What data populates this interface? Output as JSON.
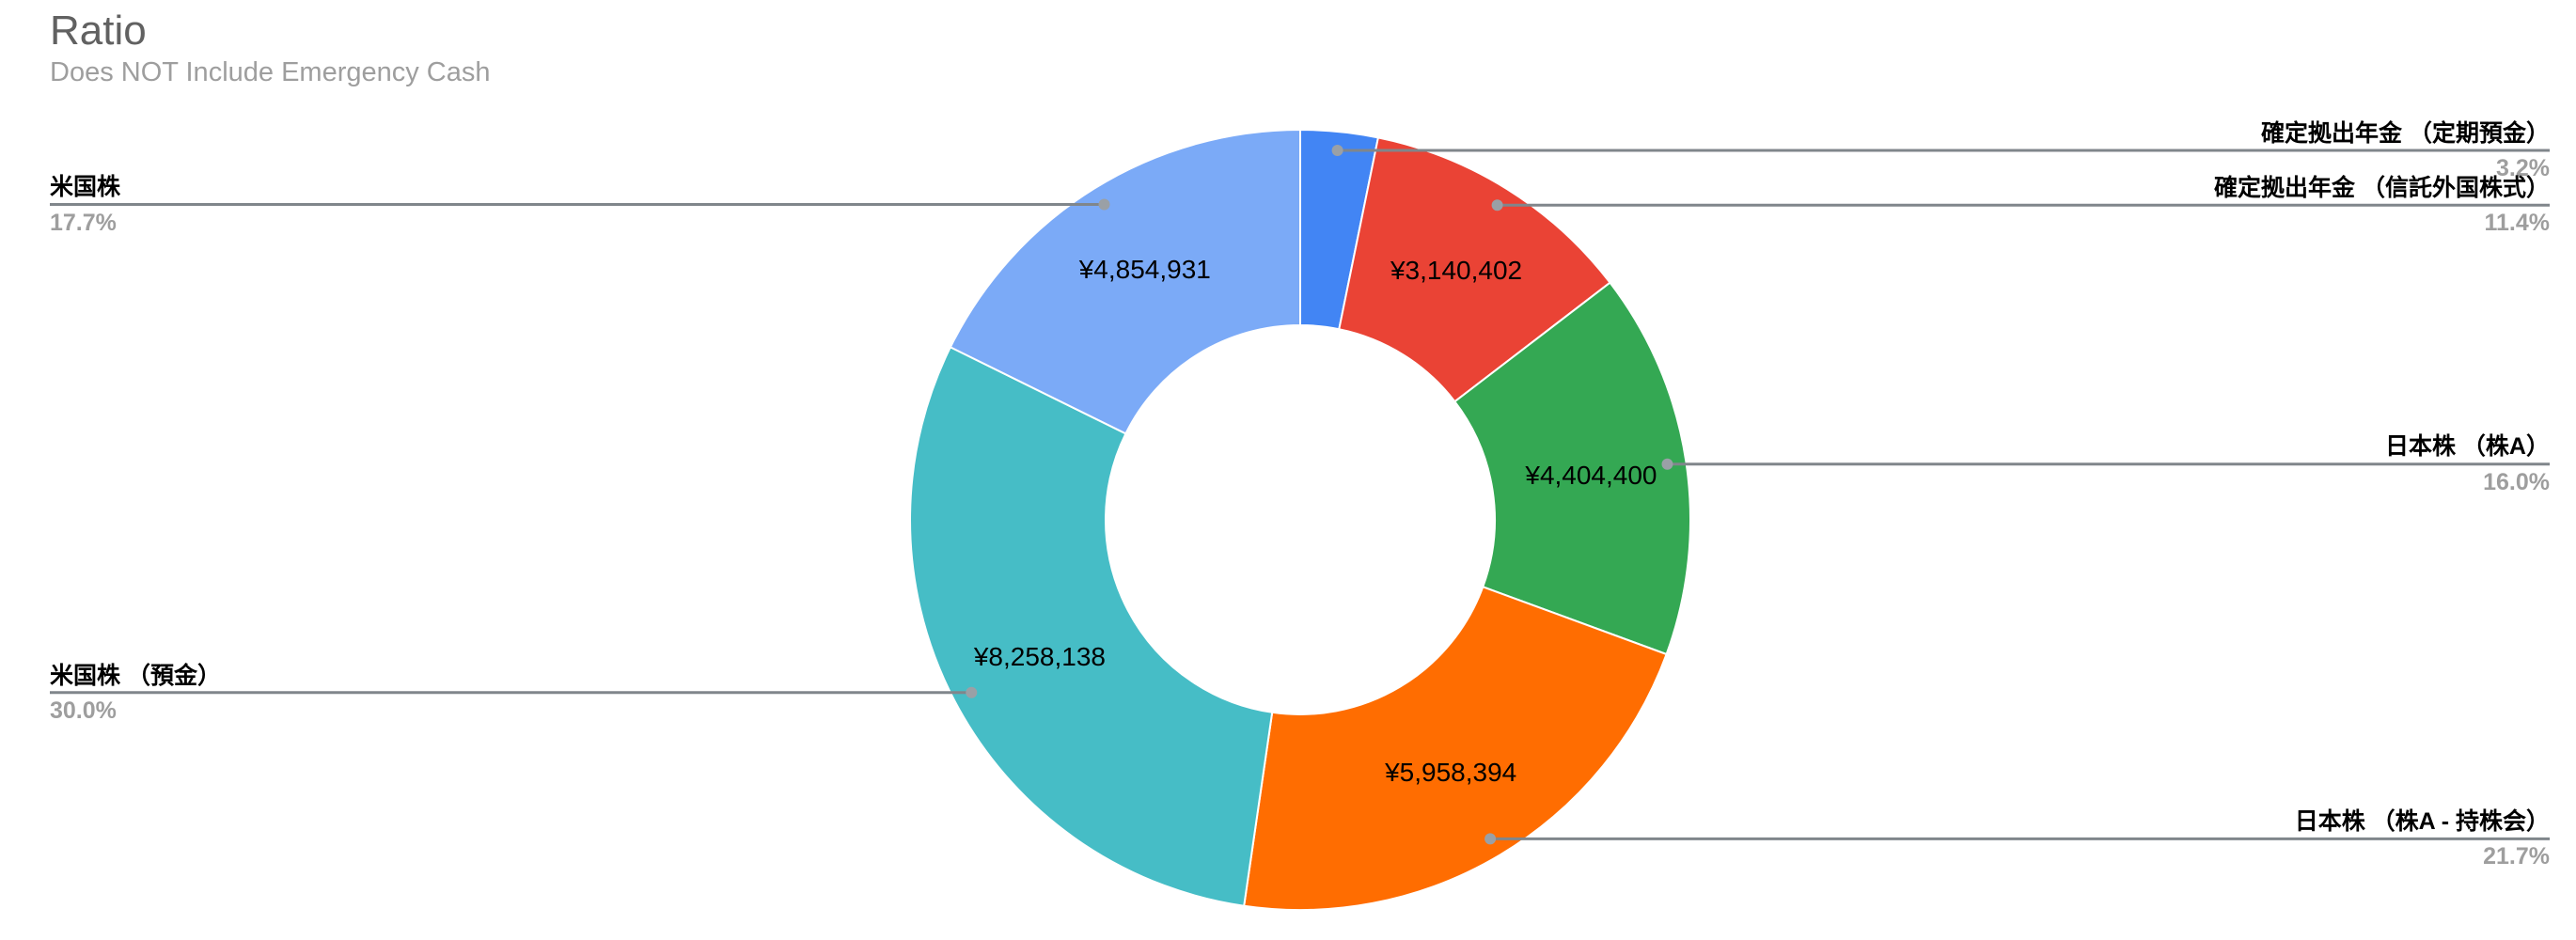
{
  "header": {
    "title": "Ratio",
    "subtitle": "Does NOT Include Emergency Cash"
  },
  "chart_data": {
    "type": "pie",
    "variant": "donut",
    "title": "Ratio",
    "subtitle": "Does NOT Include Emergency Cash",
    "currency": "JPY",
    "hole_ratio": 0.5,
    "legend_position": "labeled-callouts",
    "slices": [
      {
        "label": "確定拠出年金 （定期預金）",
        "percent": 3.2,
        "percent_label": "3.2%",
        "value_label": "",
        "color": "#4285F4",
        "callout_side": "right"
      },
      {
        "label": "確定拠出年金 （信託外国株式）",
        "percent": 11.4,
        "percent_label": "11.4%",
        "value": 3140402,
        "value_label": "¥3,140,402",
        "color": "#EA4335",
        "callout_side": "right"
      },
      {
        "label": "日本株 （株A）",
        "percent": 16.0,
        "percent_label": "16.0%",
        "value": 4404400,
        "value_label": "¥4,404,400",
        "color": "#34A853",
        "callout_side": "right"
      },
      {
        "label": "日本株 （株A - 持株会）",
        "percent": 21.7,
        "percent_label": "21.7%",
        "value": 5958394,
        "value_label": "¥5,958,394",
        "color": "#FF6D01",
        "callout_side": "right"
      },
      {
        "label": "米国株 （預金）",
        "percent": 30.0,
        "percent_label": "30.0%",
        "value": 8258138,
        "value_label": "¥8,258,138",
        "color": "#46BDC6",
        "callout_side": "left"
      },
      {
        "label": "米国株",
        "percent": 17.7,
        "percent_label": "17.7%",
        "value": 4854931,
        "value_label": "¥4,854,931",
        "color": "#7BAAF7",
        "callout_side": "left"
      }
    ]
  },
  "colors": {
    "background": "#ffffff",
    "title": "#616161",
    "subtitle": "#9e9e9e",
    "callout_label": "#000000",
    "callout_percent": "#9e9e9e",
    "value_label": "#000000",
    "leader_line": "#80868b",
    "leader_dot": "#9aa0a6",
    "slice_border": "#ffffff"
  }
}
